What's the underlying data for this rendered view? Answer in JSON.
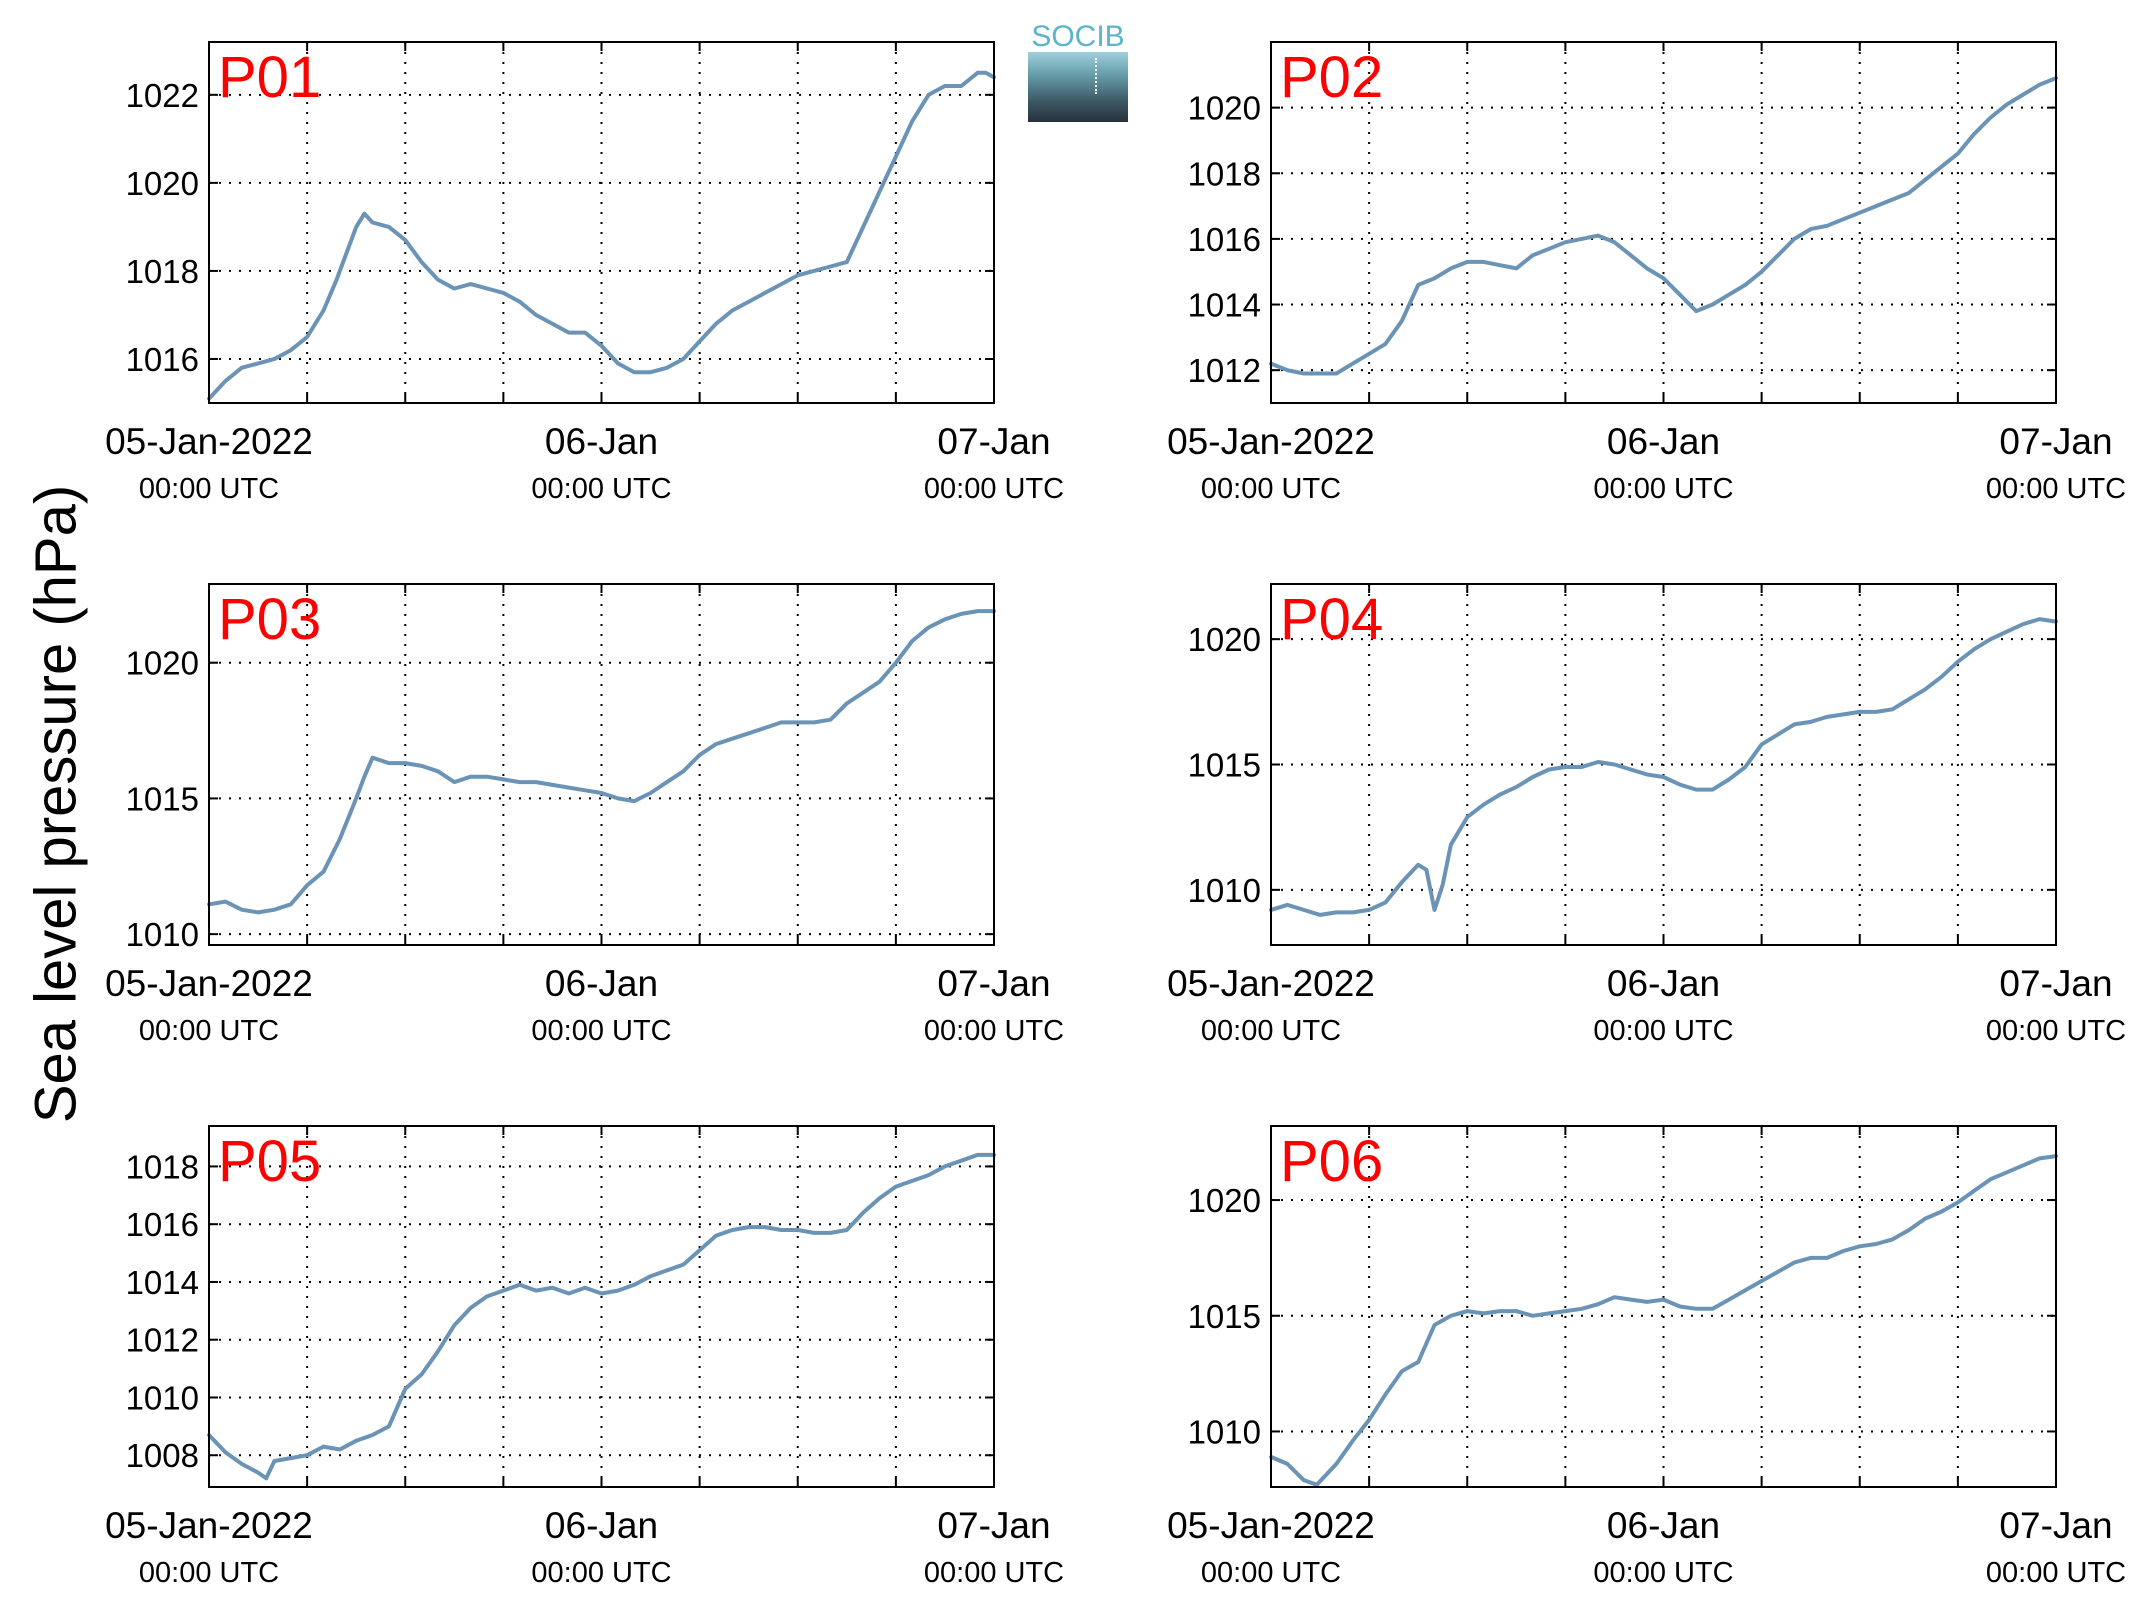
{
  "y_label": "Sea level pressure (hPa)",
  "logo": {
    "text": "SOCIB"
  },
  "colors": {
    "line": "#6a93b6",
    "panel_label": "#ff0000",
    "grid": "#000000"
  },
  "x_ticks": [
    {
      "main": "05-Jan-2022",
      "sub": "00:00 UTC"
    },
    {
      "main": "06-Jan",
      "sub": "00:00 UTC"
    },
    {
      "main": "07-Jan",
      "sub": "00:00 UTC"
    }
  ],
  "chart_data": [
    {
      "type": "line",
      "name": "P01",
      "x_unit": "hours since 05-Jan-2022 00:00 UTC",
      "xlim": [
        0,
        48
      ],
      "ylim": [
        1015,
        1023.2
      ],
      "yticks": [
        1016,
        1018,
        1020,
        1022
      ],
      "x": [
        0,
        1,
        2,
        3,
        4,
        5,
        6,
        7,
        7.8,
        9,
        9.5,
        10,
        11,
        12,
        13,
        14,
        15,
        16,
        17,
        18,
        19,
        20,
        21,
        22,
        23,
        24,
        25,
        26,
        27,
        28,
        29,
        30,
        31,
        32,
        33,
        34,
        35,
        36,
        37,
        38,
        39,
        40,
        41,
        42,
        43,
        44,
        45,
        46,
        47,
        47.5,
        48
      ],
      "y": [
        1015.1,
        1015.5,
        1015.8,
        1015.9,
        1016.0,
        1016.2,
        1016.5,
        1017.1,
        1017.8,
        1019.0,
        1019.3,
        1019.1,
        1019.0,
        1018.7,
        1018.2,
        1017.8,
        1017.6,
        1017.7,
        1017.6,
        1017.5,
        1017.3,
        1017.0,
        1016.8,
        1016.6,
        1016.6,
        1016.3,
        1015.9,
        1015.7,
        1015.7,
        1015.8,
        1016.0,
        1016.4,
        1016.8,
        1017.1,
        1017.3,
        1017.5,
        1017.7,
        1017.9,
        1018.0,
        1018.1,
        1018.2,
        1019.0,
        1019.8,
        1020.6,
        1021.4,
        1022.0,
        1022.2,
        1022.2,
        1022.5,
        1022.5,
        1022.4
      ]
    },
    {
      "type": "line",
      "name": "P02",
      "x_unit": "hours since 05-Jan-2022 00:00 UTC",
      "xlim": [
        0,
        48
      ],
      "ylim": [
        1011,
        1022
      ],
      "yticks": [
        1012,
        1014,
        1016,
        1018,
        1020
      ],
      "x": [
        0,
        1,
        2,
        3,
        4,
        5,
        6,
        7,
        8,
        9,
        10,
        11,
        12,
        13,
        14,
        15,
        16,
        17,
        18,
        19,
        20,
        21,
        22,
        23,
        24,
        25,
        26,
        27,
        28,
        29,
        30,
        31,
        32,
        33,
        34,
        35,
        36,
        37,
        38,
        39,
        40,
        41,
        42,
        43,
        44,
        45,
        46,
        47,
        48
      ],
      "y": [
        1012.2,
        1012.0,
        1011.9,
        1011.9,
        1011.9,
        1012.2,
        1012.5,
        1012.8,
        1013.5,
        1014.6,
        1014.8,
        1015.1,
        1015.3,
        1015.3,
        1015.2,
        1015.1,
        1015.5,
        1015.7,
        1015.9,
        1016.0,
        1016.1,
        1015.9,
        1015.5,
        1015.1,
        1014.8,
        1014.3,
        1013.8,
        1014.0,
        1014.3,
        1014.6,
        1015.0,
        1015.5,
        1016.0,
        1016.3,
        1016.4,
        1016.6,
        1016.8,
        1017.0,
        1017.2,
        1017.4,
        1017.8,
        1018.2,
        1018.6,
        1019.2,
        1019.7,
        1020.1,
        1020.4,
        1020.7,
        1020.9
      ]
    },
    {
      "type": "line",
      "name": "P03",
      "x_unit": "hours since 05-Jan-2022 00:00 UTC",
      "xlim": [
        0,
        48
      ],
      "ylim": [
        1009.6,
        1022.9
      ],
      "yticks": [
        1010,
        1015,
        1020
      ],
      "x": [
        0,
        1,
        2,
        3,
        4,
        5,
        6,
        7,
        8,
        9,
        9.5,
        10,
        11,
        12,
        13,
        14,
        15,
        16,
        17,
        18,
        19,
        20,
        21,
        22,
        23,
        24,
        25,
        26,
        27,
        28,
        29,
        30,
        31,
        32,
        33,
        34,
        35,
        36,
        37,
        38,
        39,
        40,
        41,
        42,
        43,
        44,
        45,
        46,
        47,
        48
      ],
      "y": [
        1011.1,
        1011.2,
        1010.9,
        1010.8,
        1010.9,
        1011.1,
        1011.8,
        1012.3,
        1013.5,
        1015.0,
        1015.8,
        1016.5,
        1016.3,
        1016.3,
        1016.2,
        1016.0,
        1015.6,
        1015.8,
        1015.8,
        1015.7,
        1015.6,
        1015.6,
        1015.5,
        1015.4,
        1015.3,
        1015.2,
        1015.0,
        1014.9,
        1015.2,
        1015.6,
        1016.0,
        1016.6,
        1017.0,
        1017.2,
        1017.4,
        1017.6,
        1017.8,
        1017.8,
        1017.8,
        1017.9,
        1018.5,
        1018.9,
        1019.3,
        1020.0,
        1020.8,
        1021.3,
        1021.6,
        1021.8,
        1021.9,
        1021.9
      ]
    },
    {
      "type": "line",
      "name": "P04",
      "x_unit": "hours since 05-Jan-2022 00:00 UTC",
      "xlim": [
        0,
        48
      ],
      "ylim": [
        1007.8,
        1022.2
      ],
      "yticks": [
        1010,
        1015,
        1020
      ],
      "x": [
        0,
        1,
        2,
        3,
        4,
        5,
        6,
        7,
        8,
        9,
        9.5,
        10,
        10.5,
        11,
        12,
        13,
        14,
        15,
        16,
        17,
        18,
        19,
        20,
        21,
        22,
        23,
        24,
        25,
        26,
        27,
        28,
        29,
        30,
        31,
        32,
        33,
        34,
        35,
        36,
        37,
        38,
        39,
        40,
        41,
        42,
        43,
        44,
        45,
        46,
        47,
        48
      ],
      "y": [
        1009.2,
        1009.4,
        1009.2,
        1009.0,
        1009.1,
        1009.1,
        1009.2,
        1009.5,
        1010.3,
        1011.0,
        1010.8,
        1009.2,
        1010.2,
        1011.8,
        1012.9,
        1013.4,
        1013.8,
        1014.1,
        1014.5,
        1014.8,
        1014.9,
        1014.9,
        1015.1,
        1015.0,
        1014.8,
        1014.6,
        1014.5,
        1014.2,
        1014.0,
        1014.0,
        1014.4,
        1014.9,
        1015.8,
        1016.2,
        1016.6,
        1016.7,
        1016.9,
        1017.0,
        1017.1,
        1017.1,
        1017.2,
        1017.6,
        1018.0,
        1018.5,
        1019.1,
        1019.6,
        1020.0,
        1020.3,
        1020.6,
        1020.8,
        1020.7
      ]
    },
    {
      "type": "line",
      "name": "P05",
      "x_unit": "hours since 05-Jan-2022 00:00 UTC",
      "xlim": [
        0,
        48
      ],
      "ylim": [
        1006.9,
        1019.4
      ],
      "yticks": [
        1008,
        1010,
        1012,
        1014,
        1016,
        1018
      ],
      "x": [
        0,
        1,
        2,
        3,
        3.5,
        4,
        5,
        6,
        7,
        8,
        9,
        10,
        11,
        12,
        13,
        14,
        15,
        16,
        17,
        18,
        19,
        20,
        21,
        22,
        23,
        24,
        25,
        26,
        27,
        28,
        29,
        30,
        31,
        32,
        33,
        34,
        35,
        36,
        37,
        38,
        39,
        40,
        41,
        42,
        43,
        44,
        45,
        46,
        47,
        48
      ],
      "y": [
        1008.7,
        1008.1,
        1007.7,
        1007.4,
        1007.2,
        1007.8,
        1007.9,
        1008.0,
        1008.3,
        1008.2,
        1008.5,
        1008.7,
        1009.0,
        1010.3,
        1010.8,
        1011.6,
        1012.5,
        1013.1,
        1013.5,
        1013.7,
        1013.9,
        1013.7,
        1013.8,
        1013.6,
        1013.8,
        1013.6,
        1013.7,
        1013.9,
        1014.2,
        1014.4,
        1014.6,
        1015.1,
        1015.6,
        1015.8,
        1015.9,
        1015.9,
        1015.8,
        1015.8,
        1015.7,
        1015.7,
        1015.8,
        1016.4,
        1016.9,
        1017.3,
        1017.5,
        1017.7,
        1018.0,
        1018.2,
        1018.4,
        1018.4
      ]
    },
    {
      "type": "line",
      "name": "P06",
      "x_unit": "hours since 05-Jan-2022 00:00 UTC",
      "xlim": [
        0,
        48
      ],
      "ylim": [
        1007.6,
        1023.2
      ],
      "yticks": [
        1010,
        1015,
        1020
      ],
      "x": [
        0,
        1,
        2,
        2.8,
        4,
        5,
        6,
        7,
        8,
        9,
        10,
        11,
        12,
        13,
        14,
        15,
        16,
        17,
        18,
        19,
        20,
        21,
        22,
        23,
        24,
        25,
        26,
        27,
        28,
        29,
        30,
        31,
        32,
        33,
        34,
        35,
        36,
        37,
        38,
        39,
        40,
        41,
        42,
        43,
        44,
        45,
        46,
        47,
        48
      ],
      "y": [
        1008.9,
        1008.6,
        1007.9,
        1007.7,
        1008.6,
        1009.6,
        1010.5,
        1011.6,
        1012.6,
        1013.0,
        1014.6,
        1015.0,
        1015.2,
        1015.1,
        1015.2,
        1015.2,
        1015.0,
        1015.1,
        1015.2,
        1015.3,
        1015.5,
        1015.8,
        1015.7,
        1015.6,
        1015.7,
        1015.4,
        1015.3,
        1015.3,
        1015.7,
        1016.1,
        1016.5,
        1016.9,
        1017.3,
        1017.5,
        1017.5,
        1017.8,
        1018.0,
        1018.1,
        1018.3,
        1018.7,
        1019.2,
        1019.5,
        1019.9,
        1020.4,
        1020.9,
        1021.2,
        1021.5,
        1021.8,
        1021.9
      ]
    }
  ]
}
